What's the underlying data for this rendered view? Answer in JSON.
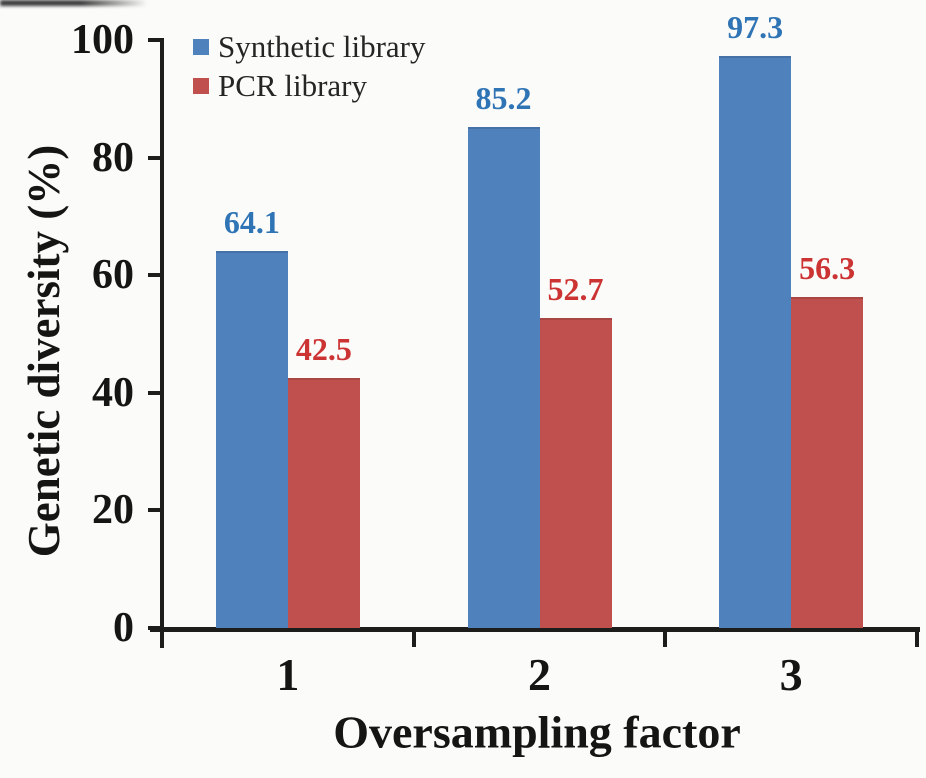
{
  "figure": {
    "background": "#fbfbf9",
    "axis_color": "#1d1d1b"
  },
  "chart_data": {
    "type": "bar",
    "title": "",
    "categories": [
      "1",
      "2",
      "3"
    ],
    "series": [
      {
        "name": "Synthetic library",
        "color": "#4F81BD",
        "label_color": "#2F74B5",
        "values": [
          64.1,
          85.2,
          97.3
        ],
        "data_labels": [
          "64.1",
          "85.2",
          "97.3"
        ]
      },
      {
        "name": "PCR library",
        "color": "#C0504D",
        "label_color": "#CC3333",
        "values": [
          42.5,
          52.7,
          56.3
        ],
        "data_labels": [
          "42.5",
          "52.7",
          "56.3"
        ]
      }
    ],
    "xlabel": "Oversampling factor",
    "ylabel": "Genetic diversity (%)",
    "ylim": [
      0,
      100
    ],
    "yticks": [
      0,
      20,
      40,
      60,
      80,
      100
    ],
    "grid": false,
    "legend_position": "top-left-inside",
    "data_labels_shown": true
  }
}
